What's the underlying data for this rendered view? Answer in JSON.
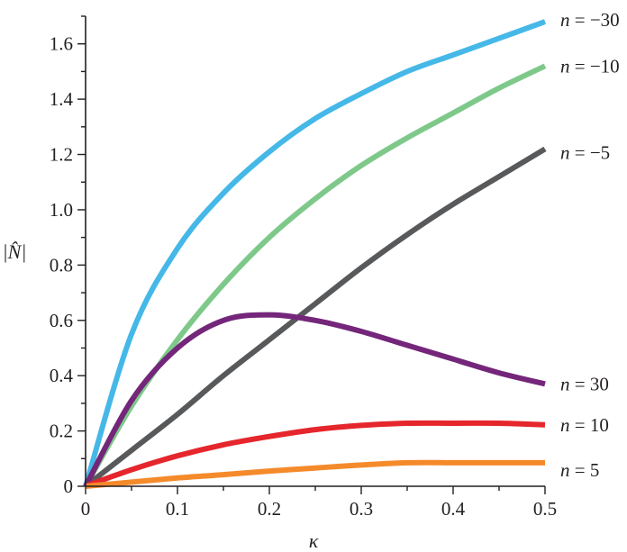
{
  "chart_data": {
    "type": "line",
    "title": "",
    "xlabel": "κ",
    "ylabel": "|N̂|",
    "xlim": [
      0,
      0.5
    ],
    "ylim": [
      0,
      1.7
    ],
    "x_ticks": [
      "0",
      "0.1",
      "0.2",
      "0.3",
      "0.4",
      "0.5"
    ],
    "y_ticks": [
      "0",
      "0.2",
      "0.4",
      "0.6",
      "0.8",
      "1.0",
      "1.2",
      "1.4",
      "1.6"
    ],
    "grid": false,
    "legend": "labels at line ends (right)",
    "series": [
      {
        "name": "n = −30",
        "color": "#45b8e8",
        "x": [
          0,
          0.05,
          0.1,
          0.15,
          0.2,
          0.25,
          0.3,
          0.35,
          0.4,
          0.45,
          0.5
        ],
        "y": [
          0,
          0.55,
          0.86,
          1.06,
          1.21,
          1.33,
          1.42,
          1.5,
          1.56,
          1.62,
          1.68
        ]
      },
      {
        "name": "n = −10",
        "color": "#7ec98a",
        "x": [
          0,
          0.05,
          0.1,
          0.15,
          0.2,
          0.25,
          0.3,
          0.35,
          0.4,
          0.45,
          0.5
        ],
        "y": [
          0,
          0.29,
          0.53,
          0.73,
          0.9,
          1.04,
          1.16,
          1.26,
          1.35,
          1.44,
          1.52
        ]
      },
      {
        "name": "n = −5",
        "color": "#58595b",
        "x": [
          0,
          0.05,
          0.1,
          0.15,
          0.2,
          0.25,
          0.3,
          0.35,
          0.4,
          0.45,
          0.5
        ],
        "y": [
          0,
          0.13,
          0.26,
          0.4,
          0.53,
          0.66,
          0.79,
          0.91,
          1.02,
          1.12,
          1.22
        ]
      },
      {
        "name": "n = 30",
        "color": "#74267a",
        "x": [
          0,
          0.05,
          0.1,
          0.15,
          0.2,
          0.25,
          0.3,
          0.35,
          0.4,
          0.45,
          0.5
        ],
        "y": [
          0,
          0.31,
          0.5,
          0.6,
          0.62,
          0.6,
          0.56,
          0.51,
          0.46,
          0.41,
          0.37
        ]
      },
      {
        "name": "n = 10",
        "color": "#e5262c",
        "x": [
          0,
          0.05,
          0.1,
          0.15,
          0.2,
          0.25,
          0.3,
          0.35,
          0.4,
          0.45,
          0.5
        ],
        "y": [
          0,
          0.06,
          0.11,
          0.15,
          0.18,
          0.205,
          0.22,
          0.228,
          0.228,
          0.228,
          0.222
        ]
      },
      {
        "name": "n = 5",
        "color": "#f58a2b",
        "x": [
          0,
          0.05,
          0.1,
          0.15,
          0.2,
          0.25,
          0.3,
          0.35,
          0.4,
          0.45,
          0.5
        ],
        "y": [
          0,
          0.015,
          0.03,
          0.042,
          0.055,
          0.066,
          0.077,
          0.085,
          0.085,
          0.085,
          0.085
        ]
      }
    ]
  }
}
